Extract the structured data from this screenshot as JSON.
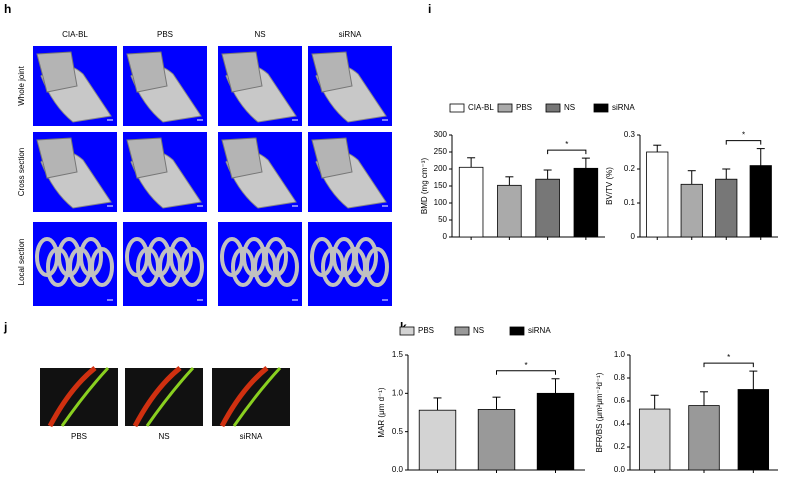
{
  "panel_h": {
    "letter": "h",
    "columns": [
      "CIA-BL",
      "PBS",
      "NS",
      "siRNA"
    ],
    "rows": [
      "Whole joint",
      "Cross section",
      "Local section"
    ]
  },
  "panel_i": {
    "letter": "i"
  },
  "panel_j": {
    "letter": "j",
    "labels": [
      "PBS",
      "NS",
      "siRNA"
    ]
  },
  "panel_k": {
    "letter": "k"
  },
  "chart_data": [
    {
      "type": "bar",
      "ylabel": "BMD (mg cm⁻³)",
      "categories": [
        "CIA-BL",
        "PBS",
        "NS",
        "siRNA"
      ],
      "colors": [
        "#ffffff",
        "#aaaaaa",
        "#777777",
        "#000000"
      ],
      "values": [
        205,
        152,
        170,
        202
      ],
      "errors": [
        28,
        25,
        27,
        30
      ],
      "ylim": [
        0,
        300
      ],
      "yticks": [
        0,
        50,
        100,
        150,
        200,
        250,
        300
      ],
      "significance": {
        "pair": [
          2,
          3
        ],
        "label": "*"
      }
    },
    {
      "type": "bar",
      "ylabel": "BV/TV (%)",
      "colors": [
        "#ffffff",
        "#aaaaaa",
        "#777777",
        "#000000"
      ],
      "values": [
        0.25,
        0.155,
        0.17,
        0.21
      ],
      "errors": [
        0.02,
        0.04,
        0.03,
        0.05
      ],
      "ylim": [
        0,
        0.3
      ],
      "yticks": [
        0,
        0.1,
        0.2,
        0.3
      ],
      "significance": {
        "pair": [
          2,
          3
        ],
        "label": "*"
      }
    },
    {
      "type": "bar",
      "ylabel": "MAR (μm d⁻¹)",
      "categories": [
        "PBS",
        "NS",
        "siRNA"
      ],
      "colors": [
        "#d3d3d3",
        "#999999",
        "#000000"
      ],
      "values": [
        0.78,
        0.79,
        1.0
      ],
      "errors": [
        0.16,
        0.16,
        0.19
      ],
      "ylim": [
        0,
        1.5
      ],
      "yticks": [
        {
          "value": 0,
          "label": "0.0"
        },
        0.5,
        {
          "value": 1,
          "label": "1.0"
        },
        1.5
      ],
      "significance": {
        "pair": [
          1,
          2
        ],
        "label": "*"
      }
    },
    {
      "type": "bar",
      "ylabel": "BFR/BS (μm²μm⁻²d⁻¹)",
      "colors": [
        "#d3d3d3",
        "#999999",
        "#000000"
      ],
      "values": [
        0.53,
        0.56,
        0.7
      ],
      "errors": [
        0.12,
        0.12,
        0.16
      ],
      "ylim": [
        0,
        1
      ],
      "yticks": [
        {
          "value": 0,
          "label": "0.0"
        },
        0.2,
        0.4,
        0.6,
        0.8,
        {
          "value": 1,
          "label": "1.0"
        }
      ],
      "significance": {
        "pair": [
          1,
          2
        ],
        "label": "*"
      }
    }
  ]
}
